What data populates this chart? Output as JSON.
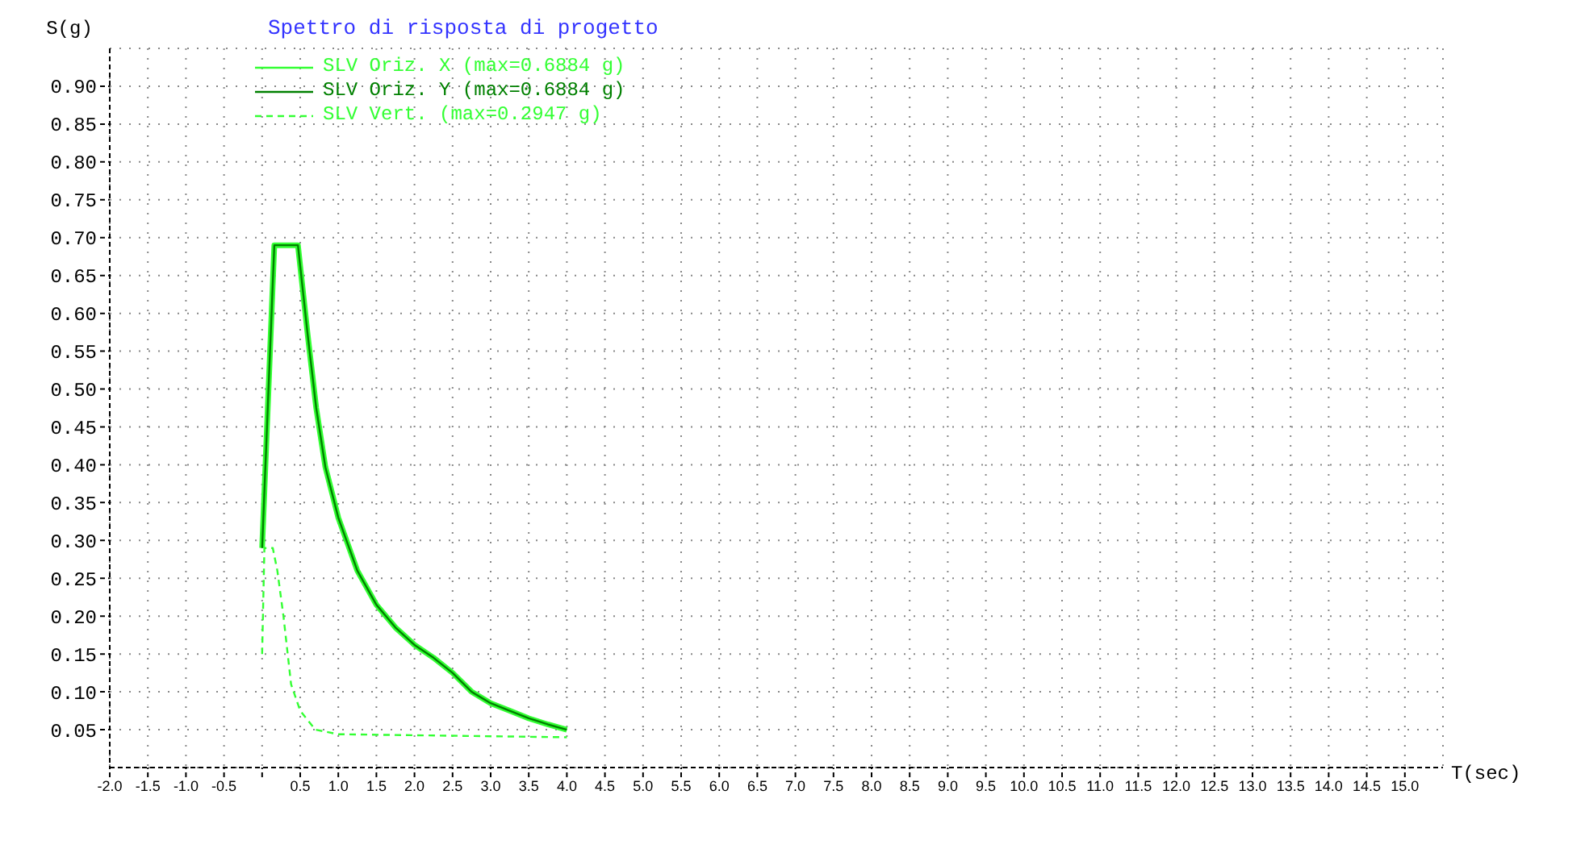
{
  "chart_data": {
    "type": "line",
    "title": "Spettro di risposta di progetto",
    "xlabel": "T(sec)",
    "ylabel": "S(g)",
    "xlim": [
      -2.0,
      15.5
    ],
    "xticks": [
      {
        "value": -2,
        "label": "-2.0"
      },
      {
        "value": -1.5,
        "label": "-1.5"
      },
      {
        "value": -1,
        "label": "-1.0"
      },
      {
        "value": -0.5,
        "label": "-0.5"
      },
      {
        "value": 0,
        "label": null
      },
      {
        "value": 0.5,
        "label": "0.5"
      },
      {
        "value": 1,
        "label": "1.0"
      },
      {
        "value": 1.5,
        "label": "1.5"
      },
      {
        "value": 2,
        "label": "2.0"
      },
      {
        "value": 2.5,
        "label": "2.5"
      },
      {
        "value": 3,
        "label": "3.0"
      },
      {
        "value": 3.5,
        "label": "3.5"
      },
      {
        "value": 4,
        "label": "4.0"
      },
      {
        "value": 4.5,
        "label": "4.5"
      },
      {
        "value": 5,
        "label": "5.0"
      },
      {
        "value": 5.5,
        "label": "5.5"
      },
      {
        "value": 6,
        "label": "6.0"
      },
      {
        "value": 6.5,
        "label": "6.5"
      },
      {
        "value": 7,
        "label": "7.0"
      },
      {
        "value": 7.5,
        "label": "7.5"
      },
      {
        "value": 8,
        "label": "8.0"
      },
      {
        "value": 8.5,
        "label": "8.5"
      },
      {
        "value": 9,
        "label": "9.0"
      },
      {
        "value": 9.5,
        "label": "9.5"
      },
      {
        "value": 10,
        "label": "10.0"
      },
      {
        "value": 10.5,
        "label": "10.5"
      },
      {
        "value": 11,
        "label": "11.0"
      },
      {
        "value": 11.5,
        "label": "11.5"
      },
      {
        "value": 12,
        "label": "12.0"
      },
      {
        "value": 12.5,
        "label": "12.5"
      },
      {
        "value": 13,
        "label": "13.0"
      },
      {
        "value": 13.5,
        "label": "13.5"
      },
      {
        "value": 14,
        "label": "14.0"
      },
      {
        "value": 14.5,
        "label": "14.5"
      },
      {
        "value": 15,
        "label": "15.0"
      }
    ],
    "ylim": [
      0,
      0.95
    ],
    "yticks": [
      {
        "value": 0.05,
        "label": "0.05"
      },
      {
        "value": 0.1,
        "label": "0.10"
      },
      {
        "value": 0.15,
        "label": "0.15"
      },
      {
        "value": 0.2,
        "label": "0.20"
      },
      {
        "value": 0.25,
        "label": "0.25"
      },
      {
        "value": 0.3,
        "label": "0.30"
      },
      {
        "value": 0.35,
        "label": "0.35"
      },
      {
        "value": 0.4,
        "label": "0.40"
      },
      {
        "value": 0.45,
        "label": "0.45"
      },
      {
        "value": 0.5,
        "label": "0.50"
      },
      {
        "value": 0.55,
        "label": "0.55"
      },
      {
        "value": 0.6,
        "label": "0.60"
      },
      {
        "value": 0.65,
        "label": "0.65"
      },
      {
        "value": 0.7,
        "label": "0.70"
      },
      {
        "value": 0.75,
        "label": "0.75"
      },
      {
        "value": 0.8,
        "label": "0.80"
      },
      {
        "value": 0.85,
        "label": "0.85"
      },
      {
        "value": 0.9,
        "label": "0.90"
      }
    ],
    "grid": true,
    "legend": "top left",
    "marker": "none",
    "series": [
      {
        "name": "SLV Oriz. X (max=0.6884 g)",
        "color": "#33ff33",
        "line_style": "solid",
        "x": [
          0,
          0.16,
          0.47,
          0.6,
          0.71,
          0.83,
          1.0,
          1.25,
          1.5,
          1.75,
          2.0,
          2.25,
          2.5,
          2.75,
          3.0,
          3.25,
          3.5,
          3.75,
          4.0
        ],
        "values": [
          0.29,
          0.69,
          0.69,
          0.57,
          0.475,
          0.397,
          0.33,
          0.26,
          0.215,
          0.185,
          0.162,
          0.145,
          0.125,
          0.1,
          0.085,
          0.075,
          0.065,
          0.057,
          0.05
        ]
      },
      {
        "name": "SLV Oriz. Y (max=0.6884 g)",
        "color": "#008000",
        "line_style": "solid",
        "x": [
          0,
          0.16,
          0.47,
          0.6,
          0.71,
          0.83,
          1.0,
          1.25,
          1.5,
          1.75,
          2.0,
          2.25,
          2.5,
          2.75,
          3.0,
          3.25,
          3.5,
          3.75,
          4.0
        ],
        "values": [
          0.29,
          0.69,
          0.69,
          0.57,
          0.475,
          0.397,
          0.33,
          0.26,
          0.215,
          0.185,
          0.162,
          0.145,
          0.125,
          0.1,
          0.085,
          0.075,
          0.065,
          0.057,
          0.05
        ]
      },
      {
        "name": "SLV Vert. (max=0.2947 g)",
        "color": "#33ff33",
        "line_style": "dashed",
        "x": [
          0,
          0.03,
          0.14,
          0.2,
          0.28,
          0.38,
          0.5,
          0.7,
          1.0,
          4.0
        ],
        "values": [
          0.15,
          0.29,
          0.29,
          0.26,
          0.2,
          0.11,
          0.075,
          0.05,
          0.044,
          0.04
        ]
      }
    ]
  }
}
